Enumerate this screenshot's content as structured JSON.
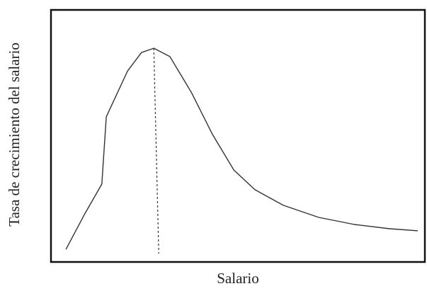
{
  "chart_data": {
    "type": "line",
    "x_label": "Salario",
    "y_label": "Tasa de crecimiento del salario",
    "xlim": [
      0,
      10
    ],
    "ylim": [
      0,
      10
    ],
    "color": "#333333",
    "series": [
      {
        "color": "#333333",
        "x": [
          0.4,
          0.9,
          1.36,
          1.48,
          2.05,
          2.42,
          2.75,
          3.18,
          3.75,
          4.32,
          4.89,
          5.45,
          6.21,
          7.16,
          8.11,
          9.05,
          9.81
        ],
        "values": [
          0.5,
          1.9,
          3.09,
          5.76,
          7.58,
          8.31,
          8.48,
          8.15,
          6.74,
          5.06,
          3.65,
          2.87,
          2.25,
          1.77,
          1.49,
          1.32,
          1.24
        ]
      }
    ]
  }
}
